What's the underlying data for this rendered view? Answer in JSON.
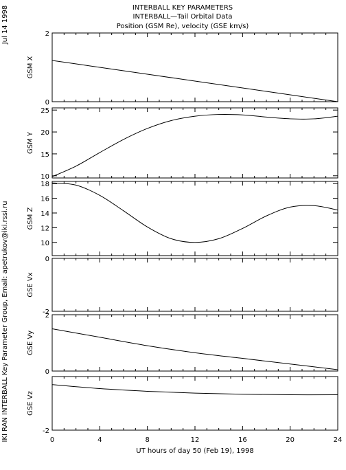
{
  "header": {
    "title_line1": "INTERBALL KEY PARAMETERS",
    "title_line2": "INTERBALL—Tail Orbital Data",
    "title_line3": "Position (GSM Re), velocity (GSE km/s)"
  },
  "side": {
    "date": "Jul 14 1998",
    "credit": "IKI RAN INTERBALL Key Parameter Group, Email: apetrukov@iki.rssi.ru"
  },
  "xaxis": {
    "label": "UT hours of day  50 (Feb 19), 1998",
    "range": [
      0,
      24
    ],
    "ticks": [
      "0",
      "4",
      "8",
      "12",
      "16",
      "20",
      "24"
    ]
  },
  "chart_data": [
    {
      "type": "line",
      "ylabel": "GSM X",
      "ylim": [
        0,
        2
      ],
      "yticks": [
        "0",
        "2"
      ],
      "x": [
        0,
        4,
        8,
        12,
        16,
        20,
        24
      ],
      "values": [
        1.2,
        1.0,
        0.8,
        0.6,
        0.4,
        0.2,
        0.0
      ]
    },
    {
      "type": "line",
      "ylabel": "GSM Y",
      "ylim": [
        9.5,
        25.5
      ],
      "yticks": [
        "10",
        "15",
        "20",
        "25"
      ],
      "x": [
        0,
        2,
        4,
        6,
        8,
        10,
        12,
        14,
        16,
        18,
        20,
        22,
        24
      ],
      "values": [
        9.8,
        12.2,
        15.3,
        18.3,
        20.8,
        22.6,
        23.6,
        24.0,
        23.9,
        23.4,
        23.0,
        23.0,
        23.6
      ]
    },
    {
      "type": "line",
      "ylabel": "GSM Z",
      "ylim": [
        8.2,
        18.3
      ],
      "yticks": [
        "10",
        "12",
        "14",
        "16",
        "18"
      ],
      "x": [
        0,
        2,
        4,
        6,
        8,
        10,
        12,
        14,
        16,
        18,
        20,
        22,
        24
      ],
      "values": [
        18.1,
        17.8,
        16.4,
        14.3,
        12.1,
        10.5,
        10.0,
        10.5,
        11.9,
        13.6,
        14.8,
        15.0,
        14.4
      ]
    },
    {
      "type": "line",
      "ylabel": "GSE Vx",
      "ylim": [
        -2,
        0
      ],
      "yticks": [
        "0",
        "-2"
      ],
      "x": [],
      "values": []
    },
    {
      "type": "line",
      "ylabel": "GSE Vy",
      "ylim": [
        0,
        2
      ],
      "yticks": [
        "0",
        "2"
      ],
      "x": [
        0,
        4,
        8,
        12,
        16,
        20,
        24
      ],
      "values": [
        1.5,
        1.2,
        0.9,
        0.65,
        0.45,
        0.25,
        0.05
      ]
    },
    {
      "type": "line",
      "ylabel": "GSE Vz",
      "ylim": [
        -2,
        0
      ],
      "yticks": [
        "-2"
      ],
      "x": [
        0,
        4,
        8,
        12,
        16,
        20,
        24
      ],
      "values": [
        -0.3,
        -0.45,
        -0.55,
        -0.62,
        -0.66,
        -0.68,
        -0.68
      ]
    }
  ]
}
